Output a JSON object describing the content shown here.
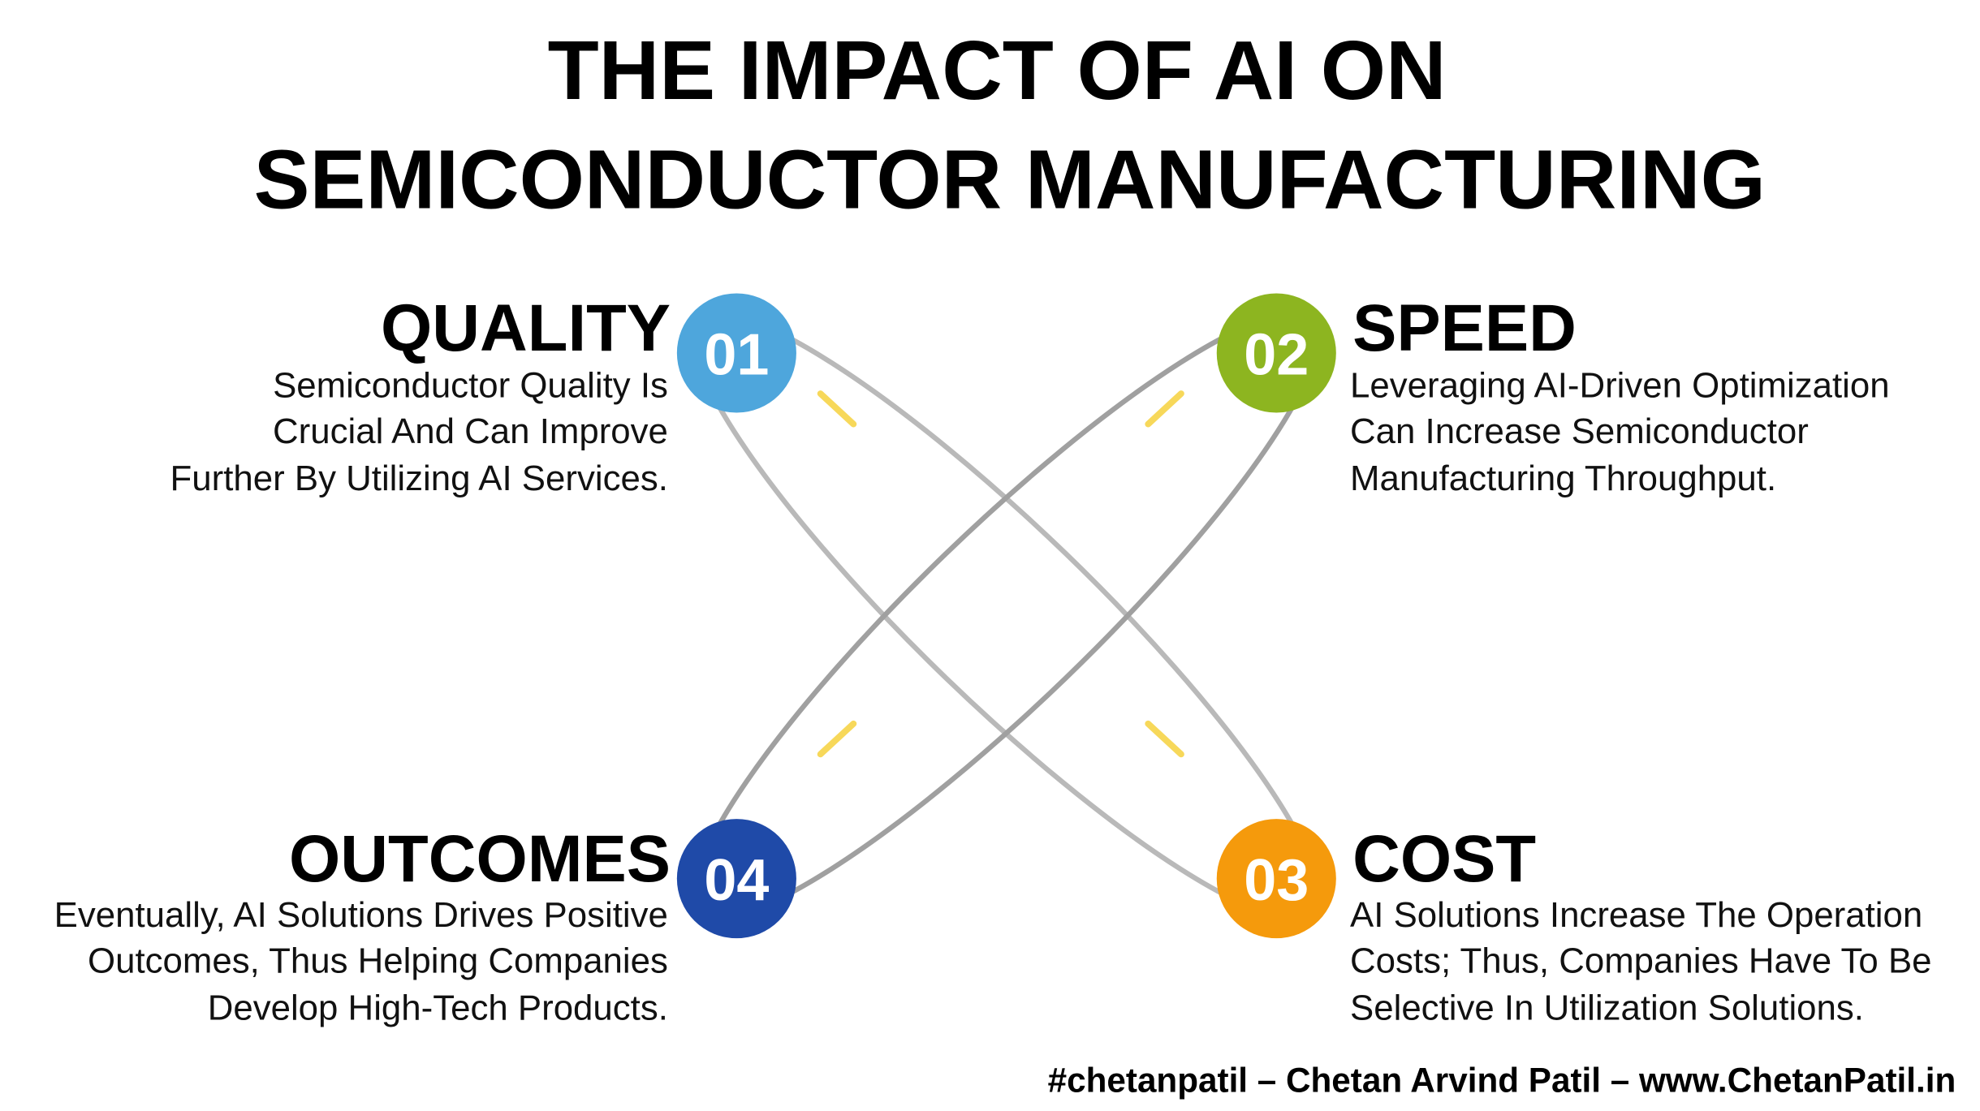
{
  "title": [
    "THE IMPACT OF AI ON",
    "SEMICONDUCTOR MANUFACTURING"
  ],
  "items": [
    {
      "number": "01",
      "heading": "QUALITY",
      "lines": [
        "Semiconductor Quality Is",
        "Crucial And Can Improve",
        "Further By Utilizing AI Services."
      ]
    },
    {
      "number": "02",
      "heading": "SPEED",
      "lines": [
        "Leveraging AI-Driven Optimization",
        "Can Increase Semiconductor",
        "Manufacturing Throughput."
      ]
    },
    {
      "number": "03",
      "heading": "COST",
      "lines": [
        "AI Solutions Increase The Operation",
        "Costs; Thus, Companies Have To Be",
        "Selective In Utilization Solutions."
      ]
    },
    {
      "number": "04",
      "heading": "OUTCOMES",
      "lines": [
        "Eventually, AI Solutions Drives Positive",
        "Outcomes, Thus Helping Companies",
        "Develop High-Tech Products."
      ]
    }
  ],
  "footer": "#chetanpatil – Chetan Arvind Patil – www.ChetanPatil.in"
}
